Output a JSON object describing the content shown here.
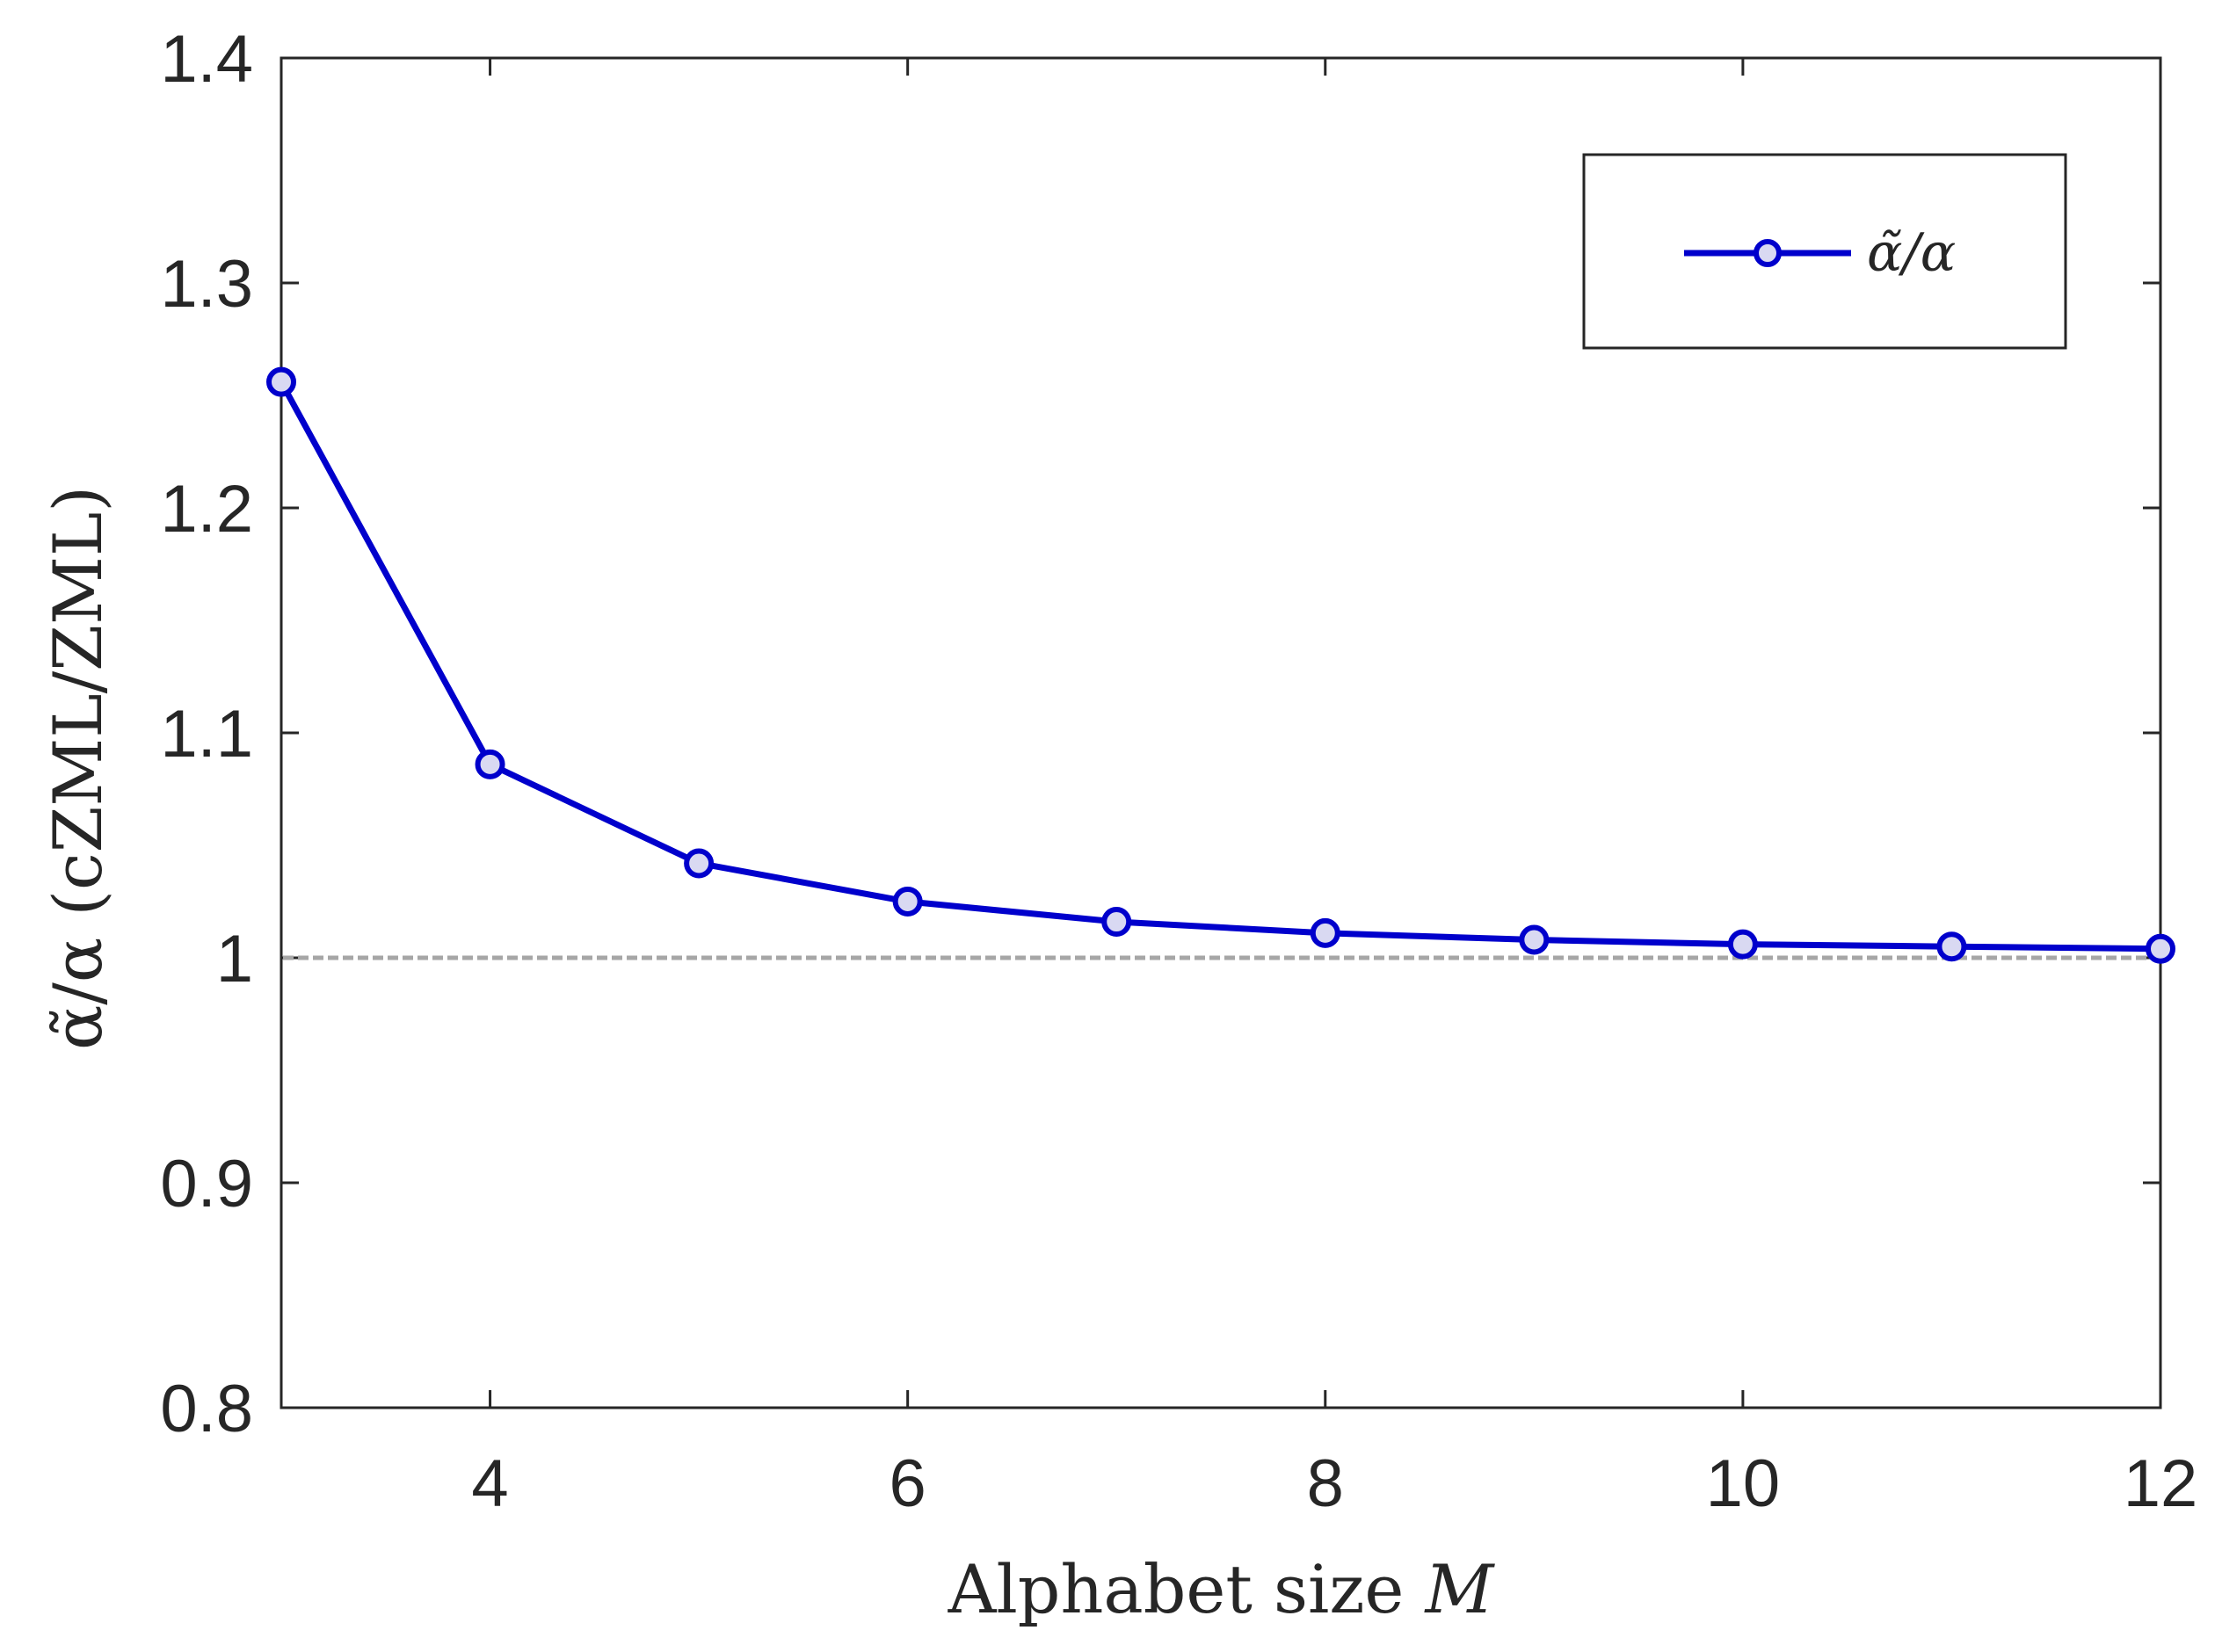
{
  "chart_data": {
    "type": "line",
    "title": "",
    "xlabel": "Alphabet size",
    "xlabel_var": "M",
    "ylabel": "α̃/α (cZML/ZML)",
    "xlim": [
      3,
      12
    ],
    "ylim": [
      0.8,
      1.4
    ],
    "xticks": [
      4,
      6,
      8,
      10,
      12
    ],
    "xtick_labels": [
      "4",
      "6",
      "8",
      "10",
      "12"
    ],
    "yticks": [
      0.8,
      0.9,
      1.0,
      1.1,
      1.2,
      1.3,
      1.4
    ],
    "ytick_labels": [
      "0.8",
      "0.9",
      "1",
      "1.1",
      "1.2",
      "1.3",
      "1.4"
    ],
    "grid": false,
    "legend_position": "top-right",
    "series": [
      {
        "name": "α̃/α",
        "color": "#0000cc",
        "marker": "circle",
        "x": [
          3,
          4,
          5,
          6,
          7,
          8,
          9,
          10,
          11,
          12
        ],
        "y": [
          1.256,
          1.086,
          1.042,
          1.025,
          1.016,
          1.011,
          1.008,
          1.006,
          1.005,
          1.004
        ]
      }
    ],
    "reference_line": {
      "y": 1.0,
      "color": "#a6a6a6",
      "style": "dashed"
    }
  }
}
